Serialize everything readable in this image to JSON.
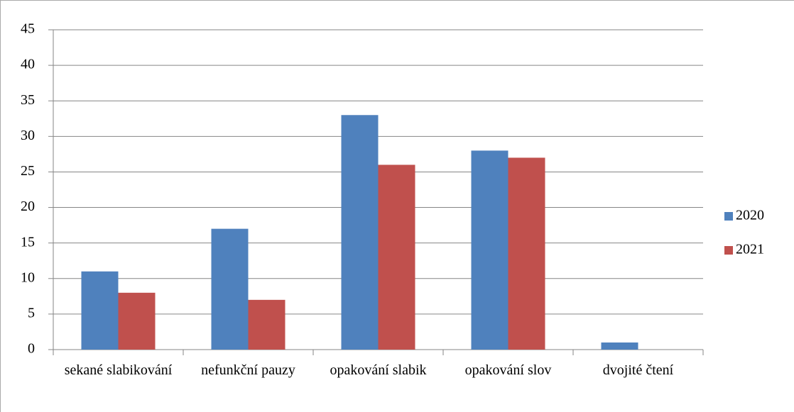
{
  "chart_data": {
    "type": "bar",
    "categories": [
      "sekané slabikování",
      "nefunkční pauzy",
      "opakování slabik",
      "opakování slov",
      "dvojité čtení"
    ],
    "series": [
      {
        "name": "2020",
        "color": "#4f81bd",
        "values": [
          11,
          17,
          33,
          28,
          1
        ]
      },
      {
        "name": "2021",
        "color": "#c0504d",
        "values": [
          8,
          7,
          26,
          27,
          0
        ]
      }
    ],
    "ylim": [
      0,
      45
    ],
    "yticks": [
      0,
      5,
      10,
      15,
      20,
      25,
      30,
      35,
      40,
      45
    ],
    "grid": true,
    "legend": "right"
  }
}
